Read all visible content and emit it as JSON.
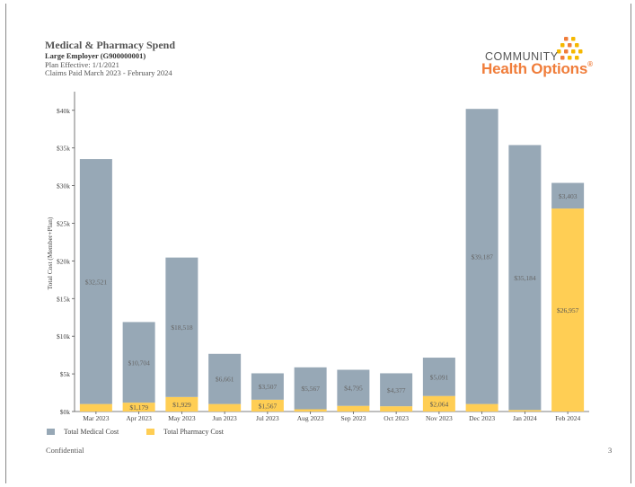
{
  "header": {
    "title": "Medical & Pharmacy Spend",
    "subtitle": "Large Employer (G900000001)",
    "plan_effective": "Plan Effective: 1/1/2021",
    "claims_paid": "Claims Paid March 2023 - February 2024"
  },
  "logo": {
    "line1": "COMMUNITY",
    "line2": "Health Options",
    "trademark": "®",
    "dot_color": "#f5b800"
  },
  "footer": {
    "confidential": "Confidential",
    "page_number": "3"
  },
  "colors": {
    "medical": "#97a8b6",
    "pharmacy": "#ffce54",
    "axis": "#555555",
    "label": "#666666"
  },
  "chart_data": {
    "type": "bar",
    "stacked": true,
    "ylabel": "Total Cost (Member+Plan)",
    "ylim": [
      0,
      42000
    ],
    "yticks": [
      0,
      5000,
      10000,
      15000,
      20000,
      25000,
      30000,
      35000,
      40000
    ],
    "ytick_labels": [
      "$0k",
      "$5k",
      "$10k",
      "$15k",
      "$20k",
      "$25k",
      "$30k",
      "$35k",
      "$40k"
    ],
    "categories": [
      "Mar 2023",
      "Apr 2023",
      "May 2023",
      "Jun 2023",
      "Jul 2023",
      "Aug 2023",
      "Sep 2023",
      "Oct 2023",
      "Nov 2023",
      "Dec 2023",
      "Jan 2024",
      "Feb 2024"
    ],
    "series": [
      {
        "name": "Total Pharmacy Cost",
        "color": "#ffce54",
        "values": [
          1000,
          1179,
          1929,
          1000,
          1567,
          300,
          750,
          700,
          2064,
          1000,
          200,
          26957
        ],
        "labels": [
          "",
          "$1,179",
          "$1,929",
          "",
          "$1,567",
          "",
          "",
          "",
          "$2,064",
          "",
          "",
          "$26,957"
        ]
      },
      {
        "name": "Total Medical Cost",
        "color": "#97a8b6",
        "values": [
          32521,
          10704,
          18518,
          6661,
          3507,
          5567,
          4795,
          4377,
          5091,
          39187,
          35184,
          3403
        ],
        "labels": [
          "$32,521",
          "$10,704",
          "$18,518",
          "$6,661",
          "$3,507",
          "$5,567",
          "$4,795",
          "$4,377",
          "$5,091",
          "$39,187",
          "$35,184",
          "$3,403"
        ]
      }
    ],
    "legend_position": "bottom-left"
  }
}
